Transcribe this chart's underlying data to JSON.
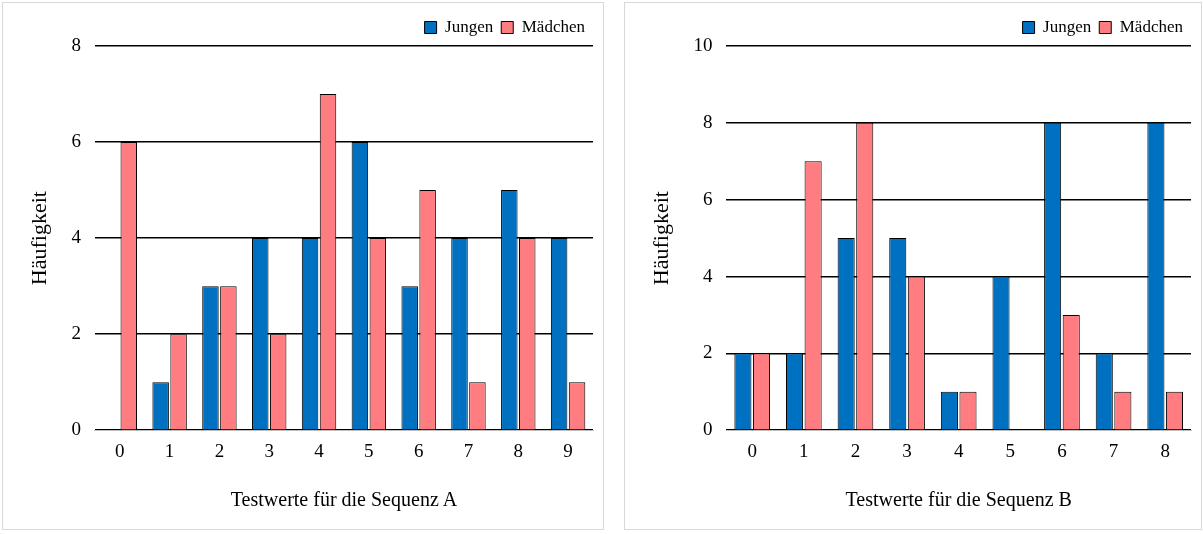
{
  "chart_data": [
    {
      "type": "bar",
      "xlabel": "Testwerte für die Sequenz A",
      "ylabel": "Häufigkeit",
      "categories": [
        "0",
        "1",
        "2",
        "3",
        "4",
        "5",
        "6",
        "7",
        "8",
        "9"
      ],
      "series": [
        {
          "name": "Jungen",
          "color": "#0070c0",
          "values": [
            0,
            1,
            3,
            4,
            4,
            6,
            3,
            4,
            5,
            4
          ]
        },
        {
          "name": "Mädchen",
          "color": "#ff7c80",
          "values": [
            6,
            2,
            3,
            2,
            7,
            4,
            5,
            1,
            4,
            1
          ]
        }
      ],
      "ylim": [
        0,
        8
      ],
      "yticks": [
        0,
        2,
        4,
        6,
        8
      ],
      "grid": "y",
      "legend": "top right"
    },
    {
      "type": "bar",
      "xlabel": "Testwerte für die Sequenz B",
      "ylabel": "Häufigkeit",
      "categories": [
        "0",
        "1",
        "2",
        "3",
        "4",
        "5",
        "6",
        "7",
        "8"
      ],
      "series": [
        {
          "name": "Jungen",
          "color": "#0070c0",
          "values": [
            2,
            2,
            5,
            5,
            1,
            4,
            8,
            2,
            8
          ]
        },
        {
          "name": "Mädchen",
          "color": "#ff7c80",
          "values": [
            2,
            7,
            8,
            4,
            1,
            0,
            3,
            1,
            1
          ]
        }
      ],
      "ylim": [
        0,
        10
      ],
      "yticks": [
        0,
        2,
        4,
        6,
        8,
        10
      ],
      "grid": "y",
      "legend": "top right"
    }
  ]
}
